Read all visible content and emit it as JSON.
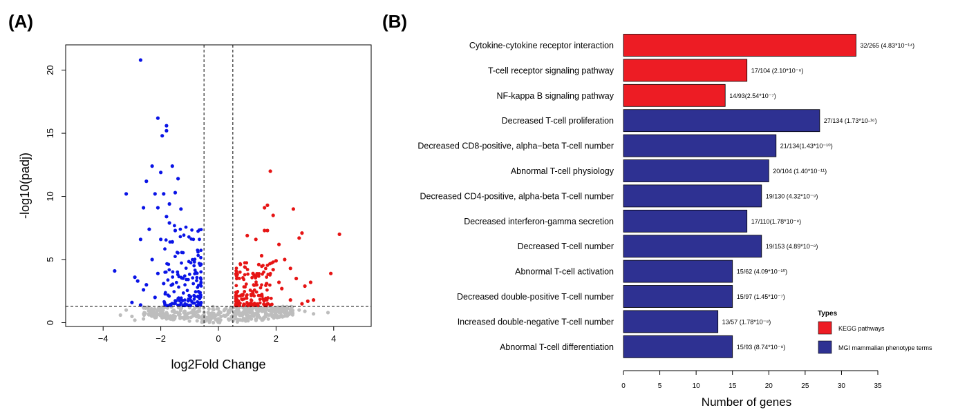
{
  "panels": {
    "a_label": "(A)",
    "b_label": "(B)"
  },
  "chart_data": [
    {
      "type": "scatter",
      "title": "",
      "xlabel": "log2Fold Change",
      "ylabel": "-log10(padj)",
      "xlim": [
        -5.3,
        5.3
      ],
      "ylim": [
        -0.3,
        22
      ],
      "xticks": [
        -4,
        -2,
        0,
        2,
        4
      ],
      "yticks": [
        0,
        5,
        10,
        15,
        20
      ],
      "thresholds": {
        "vertical": [
          -0.5,
          0.5
        ],
        "horizontal": 1.3
      },
      "grid": false,
      "colors": {
        "down": "#0a14e6",
        "up": "#e61414",
        "ns": "#bdbdbd"
      },
      "series": [
        {
          "key": "down",
          "points": [
            [
              -2.7,
              20.8
            ],
            [
              -2.1,
              16.2
            ],
            [
              -1.8,
              15.6
            ],
            [
              -1.8,
              15.2
            ],
            [
              -1.95,
              14.8
            ],
            [
              -1.6,
              12.4
            ],
            [
              -2.3,
              12.4
            ],
            [
              -2.5,
              11.2
            ],
            [
              -3.2,
              10.2
            ],
            [
              -2.0,
              11.9
            ],
            [
              -1.4,
              11.4
            ],
            [
              -2.2,
              10.2
            ],
            [
              -1.9,
              10.2
            ],
            [
              -1.5,
              10.3
            ],
            [
              -3.6,
              4.1
            ],
            [
              -2.8,
              3.3
            ],
            [
              -2.5,
              3.0
            ],
            [
              -2.6,
              2.6
            ],
            [
              -2.1,
              9.1
            ],
            [
              -1.7,
              9.4
            ],
            [
              -1.3,
              9.0
            ],
            [
              -2.6,
              9.1
            ],
            [
              -1.8,
              8.4
            ],
            [
              -2.4,
              7.4
            ],
            [
              -2.0,
              6.6
            ],
            [
              -2.7,
              6.6
            ],
            [
              -1.6,
              6.4
            ],
            [
              -2.9,
              3.6
            ],
            [
              -1.7,
              7.9
            ],
            [
              -1.5,
              7.3
            ],
            [
              -2.3,
              5.0
            ],
            [
              -2.1,
              3.9
            ],
            [
              -1.9,
              3.1
            ],
            [
              -2.2,
              2.0
            ],
            [
              -3.0,
              1.6
            ],
            [
              -2.7,
              1.4
            ]
          ]
        },
        {
          "key": "up",
          "points": [
            [
              1.8,
              12.0
            ],
            [
              1.7,
              9.3
            ],
            [
              1.6,
              9.1
            ],
            [
              2.6,
              9.0
            ],
            [
              1.9,
              8.5
            ],
            [
              1.6,
              7.3
            ],
            [
              1.7,
              7.3
            ],
            [
              2.9,
              7.1
            ],
            [
              2.8,
              6.7
            ],
            [
              4.2,
              7.0
            ],
            [
              1.3,
              6.6
            ],
            [
              2.1,
              6.2
            ],
            [
              1.0,
              6.9
            ],
            [
              1.5,
              5.3
            ],
            [
              2.3,
              5.0
            ],
            [
              2.0,
              4.9
            ],
            [
              1.4,
              4.6
            ],
            [
              1.9,
              4.2
            ],
            [
              3.9,
              3.9
            ],
            [
              2.5,
              4.3
            ],
            [
              1.2,
              3.9
            ],
            [
              2.7,
              3.5
            ],
            [
              3.0,
              2.9
            ],
            [
              3.2,
              3.2
            ],
            [
              2.1,
              3.2
            ],
            [
              1.3,
              3.0
            ],
            [
              2.2,
              2.7
            ],
            [
              3.3,
              1.8
            ],
            [
              3.1,
              1.7
            ],
            [
              2.9,
              1.5
            ],
            [
              2.5,
              1.8
            ]
          ]
        },
        {
          "key": "ns",
          "points": [
            [
              -3.4,
              0.6
            ],
            [
              -3.0,
              0.5
            ],
            [
              -2.6,
              0.3
            ],
            [
              -2.3,
              0.7
            ],
            [
              -2.2,
              0.4
            ],
            [
              -2.0,
              0.8
            ],
            [
              -1.6,
              0.9
            ],
            [
              3.0,
              0.9
            ],
            [
              3.3,
              0.7
            ],
            [
              3.8,
              0.8
            ],
            [
              2.8,
              1.0
            ],
            [
              -3.2,
              1.0
            ],
            [
              -2.9,
              0.2
            ],
            [
              -1.8,
              0.3
            ],
            [
              -1.9,
              0.6
            ],
            [
              -1.5,
              0.5
            ],
            [
              -1.2,
              0.8
            ]
          ]
        }
      ]
    },
    {
      "type": "bar",
      "orientation": "horizontal",
      "title": "",
      "xlabel": "Number  of genes",
      "ylabel": "",
      "xlim": [
        0,
        35
      ],
      "xticks": [
        0,
        5,
        10,
        15,
        20,
        25,
        30,
        35
      ],
      "grid": false,
      "legend": {
        "title": "Types",
        "position": "right",
        "entries": [
          {
            "label": "KEGG pathways",
            "color": "#ed1c24"
          },
          {
            "label": "MGI mammalian phenotype terms",
            "color": "#2e3192"
          }
        ]
      },
      "bars": [
        {
          "category": "Cytokine-cytokine receptor interaction",
          "value": 32,
          "annotation": "32/265 (4.83*10⁻¹⁴)",
          "type": "KEGG pathways"
        },
        {
          "category": "T-cell receptor signaling pathway",
          "value": 17,
          "annotation": "17/104 (2.10*10⁻⁸)",
          "type": "KEGG pathways"
        },
        {
          "category": "NF-kappa B signaling pathway",
          "value": 14,
          "annotation": "14/93(2.54*10⁻⁷)",
          "type": "KEGG pathways"
        },
        {
          "category": "Decreased T-cell proliferation",
          "value": 27,
          "annotation": "27/134 (1.73*10-¹⁶)",
          "type": "MGI mammalian phenotype terms"
        },
        {
          "category": "Decreased CD8-positive, alpha−beta T-cell number",
          "value": 21,
          "annotation": "21/134(1.43*10⁻¹⁰)",
          "type": "MGI mammalian phenotype terms"
        },
        {
          "category": "Abnormal T-cell physiology",
          "value": 20,
          "annotation": "20/104 (1.40*10⁻¹¹)",
          "type": "MGI mammalian phenotype terms"
        },
        {
          "category": "Decreased CD4-positive, alpha-beta T-cell number",
          "value": 19,
          "annotation": "19/130 (4.32*10⁻⁹)",
          "type": "MGI mammalian phenotype terms"
        },
        {
          "category": "Decreased interferon-gamma secretion",
          "value": 17,
          "annotation": "17/110(1.78*10⁻⁸)",
          "type": "MGI mammalian phenotype terms"
        },
        {
          "category": "Decreased T-cell number",
          "value": 19,
          "annotation": "19/153 (4.89*10⁻⁸)",
          "type": "MGI mammalian phenotype terms"
        },
        {
          "category": "Abnormal T-cell activation",
          "value": 15,
          "annotation": "15/62 (4.09*10⁻¹⁰)",
          "type": "MGI mammalian phenotype terms"
        },
        {
          "category": "Decreased double-positive T-cell number",
          "value": 15,
          "annotation": "15/97 (1.45*10⁻⁷)",
          "type": "MGI mammalian phenotype terms"
        },
        {
          "category": "Increased double-negative T-cell number",
          "value": 13,
          "annotation": "13/57 (1.78*10⁻⁸)",
          "type": "MGI mammalian phenotype terms"
        },
        {
          "category": "Abnormal T-cell differentiation",
          "value": 15,
          "annotation": "15/93 (8.74*10⁻⁸)",
          "type": "MGI mammalian phenotype terms"
        }
      ]
    }
  ]
}
